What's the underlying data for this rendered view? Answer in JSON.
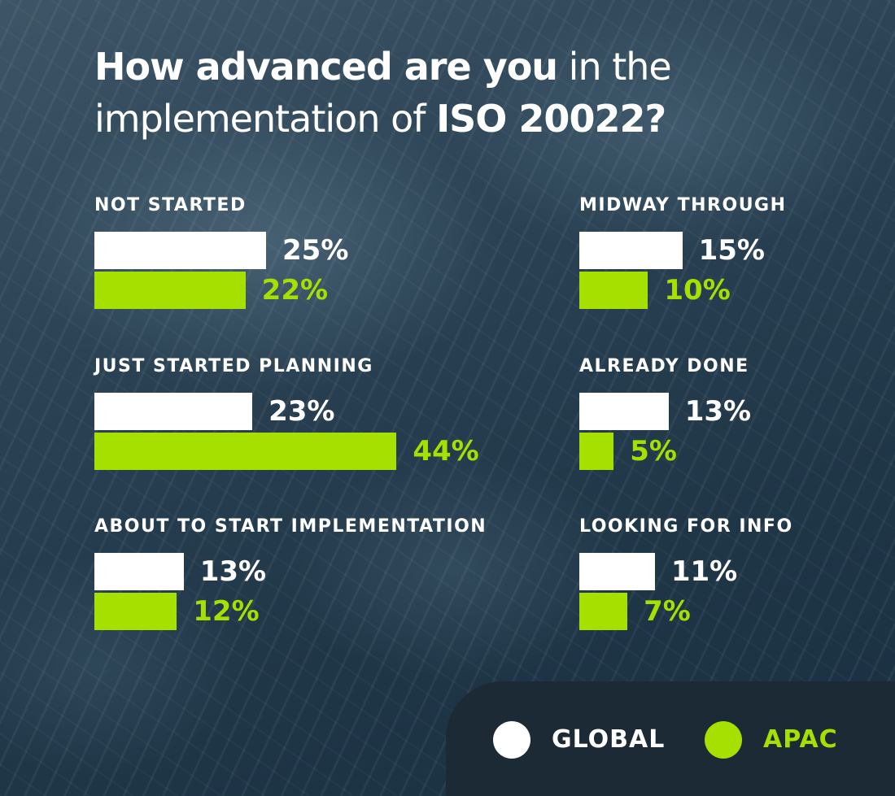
{
  "title": {
    "line1_bold": "How advanced are you",
    "line1_light": "in the",
    "line2_light": "implementation of",
    "line2_bold": "ISO 20022?"
  },
  "colors": {
    "global": "#ffffff",
    "apac": "#a6e000",
    "panel": "#1c2a35"
  },
  "legend": {
    "global": "GLOBAL",
    "apac": "APAC"
  },
  "chart_data": {
    "type": "bar",
    "orientation": "horizontal",
    "title": "How advanced are you in the implementation of ISO 20022?",
    "categories": [
      "NOT STARTED",
      "JUST STARTED PLANNING",
      "ABOUT TO START IMPLEMENTATION",
      "MIDWAY THROUGH",
      "ALREADY DONE",
      "LOOKING FOR INFO"
    ],
    "series": [
      {
        "name": "GLOBAL",
        "values": [
          25,
          23,
          13,
          15,
          13,
          11
        ],
        "labels": [
          "25%",
          "23%",
          "13%",
          "15%",
          "13%",
          "11%"
        ]
      },
      {
        "name": "APAC",
        "values": [
          22,
          44,
          12,
          10,
          5,
          7
        ],
        "labels": [
          "22%",
          "44%",
          "12%",
          "10%",
          "5%",
          "7%"
        ]
      }
    ],
    "unit": "%",
    "legend_position": "bottom-right",
    "grid": false
  }
}
